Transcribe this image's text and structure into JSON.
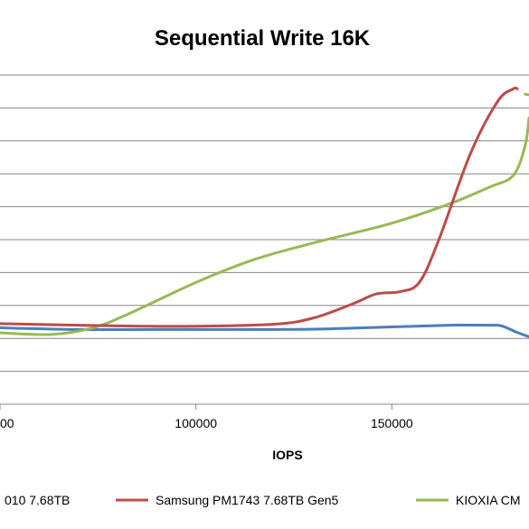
{
  "chart_data": {
    "type": "line",
    "title": "Sequential Write 16K",
    "xlabel": "IOPS",
    "ylabel": "",
    "xlim": [
      50000,
      185000
    ],
    "ylim": [
      0,
      1
    ],
    "x_ticks": [
      "00",
      "100000",
      "150000"
    ],
    "grid": "horizontal",
    "legend_position": "bottom",
    "series": [
      {
        "name": "010 7.68TB",
        "color": "#4a7ebb",
        "x": [
          50000,
          70000,
          90000,
          110000,
          130000,
          150000,
          165000,
          175000,
          178000,
          182000,
          185000
        ],
        "y": [
          0.232,
          0.227,
          0.227,
          0.227,
          0.228,
          0.235,
          0.24,
          0.24,
          0.238,
          0.218,
          0.205
        ]
      },
      {
        "name": "Samsung PM1743 7.68TB Gen5",
        "color": "#be4b48",
        "x": [
          50000,
          80000,
          100000,
          120000,
          130000,
          140000,
          146000,
          152000,
          157000,
          162000,
          170000,
          177000,
          181000,
          182000
        ],
        "y": [
          0.245,
          0.238,
          0.237,
          0.243,
          0.262,
          0.305,
          0.335,
          0.342,
          0.37,
          0.5,
          0.76,
          0.92,
          0.958,
          0.958
        ]
      },
      {
        "name": "KIOXIA CM",
        "color": "#98b954",
        "x": [
          50000,
          63000,
          73000,
          82000,
          100000,
          115000,
          130000,
          150000,
          165000,
          175000,
          181000,
          184000,
          185000
        ],
        "y": [
          0.217,
          0.212,
          0.23,
          0.27,
          0.37,
          0.44,
          0.49,
          0.55,
          0.61,
          0.66,
          0.695,
          0.785,
          0.87
        ]
      },
      {
        "name": "",
        "color": "#98b954",
        "x": [
          184000,
          185000
        ],
        "y": [
          0.942,
          0.94
        ]
      }
    ]
  }
}
